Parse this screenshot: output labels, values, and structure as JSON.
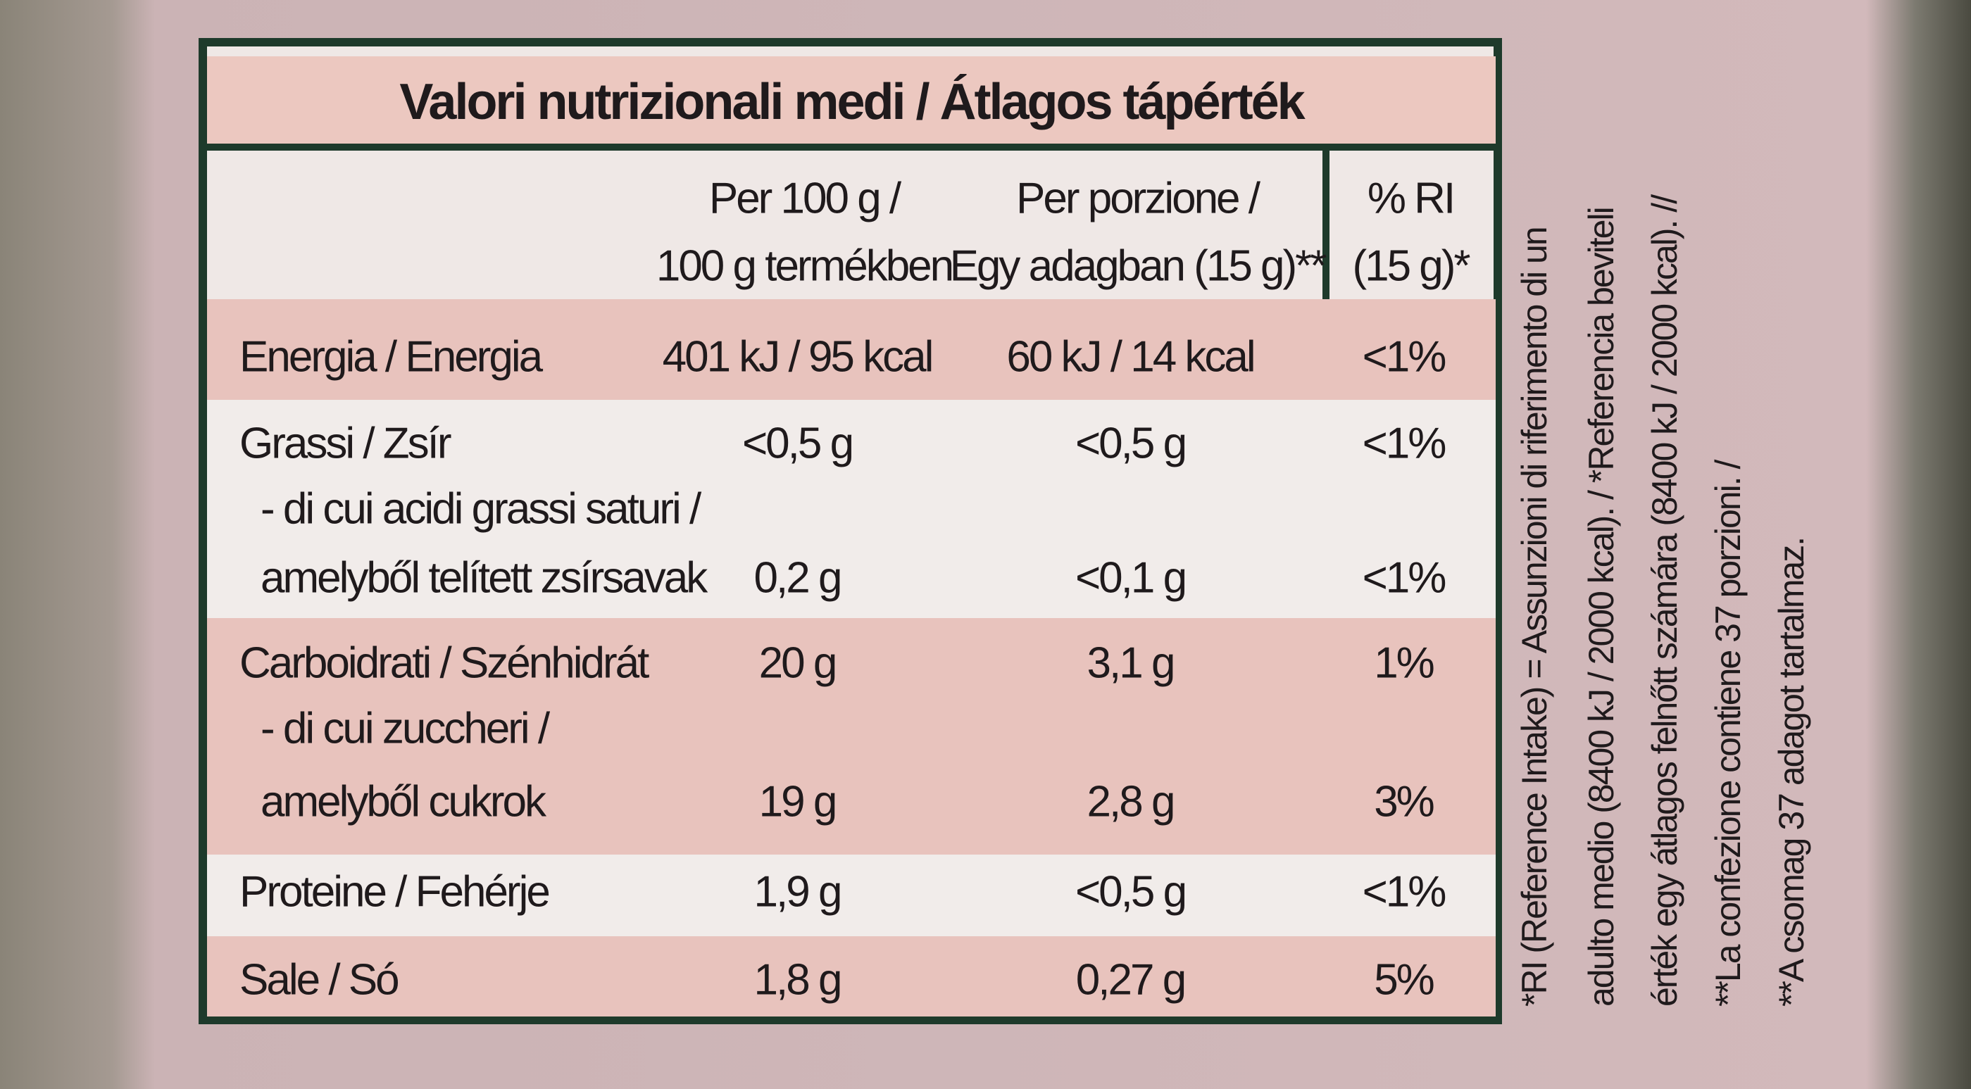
{
  "header": {
    "title": "Valori nutrizionali medi / Átlagos tápérték"
  },
  "table": {
    "columns": [
      [
        "Per 100 g /",
        "100 g termékben"
      ],
      [
        "Per porzione /",
        "Egy adagban (15 g)**"
      ],
      [
        "% RI",
        "(15 g)*"
      ]
    ],
    "rows": [
      {
        "label": [
          "Energia / Energia"
        ],
        "values": [
          "401 kJ / 95 kcal",
          "60 kJ / 14 kcal",
          "<1%"
        ]
      },
      {
        "label": [
          "Grassi / Zsír"
        ],
        "values": [
          "<0,5 g",
          "<0,5 g",
          "<1%"
        ]
      },
      {
        "label": [
          "- di cui acidi grassi saturi /",
          "amelyből telített zsírsavak"
        ],
        "values": [
          "0,2 g",
          "<0,1 g",
          "<1%"
        ]
      },
      {
        "label": [
          "Carboidrati / Szénhidrát"
        ],
        "values": [
          "20 g",
          "3,1 g",
          "1%"
        ]
      },
      {
        "label": [
          "- di cui zuccheri /",
          "amelyből cukrok"
        ],
        "values": [
          "19 g",
          "2,8 g",
          "3%"
        ]
      },
      {
        "label": [
          "Proteine / Fehérje"
        ],
        "values": [
          "1,9 g",
          "<0,5 g",
          "<1%"
        ]
      },
      {
        "label": [
          "Sale / Só"
        ],
        "values": [
          "1,8 g",
          "0,27 g",
          "5%"
        ]
      }
    ]
  },
  "footnote": [
    "*RI (Reference Intake) = Assunzioni di riferimento di un",
    "adulto medio (8400 kJ / 2000 kcal). / *Referencia beviteli",
    "érték egy átlagos felnőtt számára (8400 kJ / 2000 kcal). //",
    "**La confezione contiene 37 porzioni. /",
    "**A csomag 37 adagot tartalmaz."
  ]
}
